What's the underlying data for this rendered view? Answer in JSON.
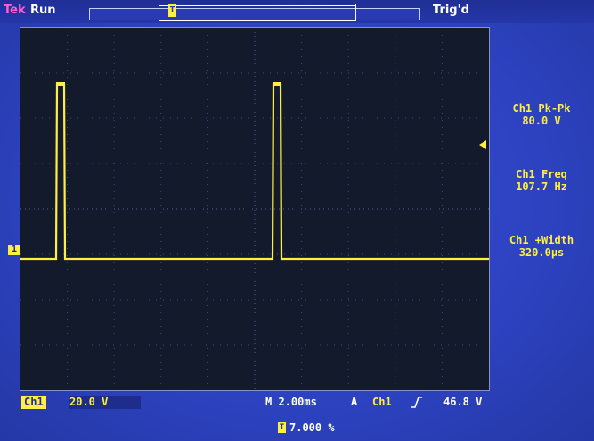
{
  "header": {
    "brand": "Tek",
    "run_state": "Run",
    "trigger_status": "Trig'd"
  },
  "measurements": [
    {
      "label": "Ch1 Pk-Pk",
      "value": "80.0 V"
    },
    {
      "label": "Ch1 Freq",
      "value": "107.7 Hz"
    },
    {
      "label": "Ch1 +Width",
      "value": "320.0μs"
    }
  ],
  "footer": {
    "channel": "Ch1",
    "vertical_scale": "20.0 V",
    "timebase": "M 2.00ms",
    "trigger_type": "A",
    "trigger_source": "Ch1",
    "trigger_level": "46.8 V",
    "horizontal_position": "7.000 %"
  },
  "markers": {
    "ground": "1",
    "trigger_position": "T"
  },
  "colors": {
    "trace": "#ffee44",
    "background": "#2d43c2",
    "graticule": "#121a2c"
  }
}
